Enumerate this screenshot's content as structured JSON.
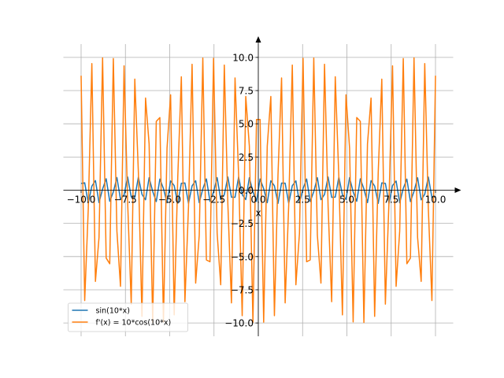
{
  "chart_data": {
    "type": "line",
    "xlabel": "x",
    "x": [
      -10,
      -9.798,
      -9.596,
      -9.3939,
      -9.1919,
      -8.9899,
      -8.7879,
      -8.5859,
      -8.3838,
      -8.1818,
      -7.9798,
      -7.7778,
      -7.5758,
      -7.3737,
      -7.1717,
      -6.9697,
      -6.7677,
      -6.5657,
      -6.3636,
      -6.1616,
      -5.9596,
      -5.7576,
      -5.5556,
      -5.3535,
      -5.1515,
      -4.9495,
      -4.7475,
      -4.5455,
      -4.3434,
      -4.1414,
      -3.9394,
      -3.7374,
      -3.5354,
      -3.3333,
      -3.1313,
      -2.9293,
      -2.7273,
      -2.5253,
      -2.3232,
      -2.1212,
      -1.9192,
      -1.7172,
      -1.5152,
      -1.3131,
      -1.1111,
      -0.9091,
      -0.7071,
      -0.5051,
      -0.303,
      -0.101,
      0.101,
      0.303,
      0.5051,
      0.7071,
      0.9091,
      1.1111,
      1.3131,
      1.5152,
      1.7172,
      1.9192,
      2.1212,
      2.3232,
      2.5253,
      2.7273,
      2.9293,
      3.1313,
      3.3333,
      3.5354,
      3.7374,
      3.9394,
      4.1414,
      4.3434,
      4.5455,
      4.7475,
      4.9495,
      5.1515,
      5.3535,
      5.5556,
      5.7576,
      5.9596,
      6.1616,
      6.3636,
      6.5657,
      6.7677,
      6.9697,
      7.1717,
      7.3737,
      7.5758,
      7.7778,
      7.9798,
      8.1818,
      8.3838,
      8.5859,
      8.7879,
      8.9899,
      9.1919,
      9.3939,
      9.596,
      9.798,
      10
    ],
    "series": [
      {
        "name": "sin(10*x)",
        "color": "#1f77b4",
        "values": [
          0.506,
          0.557,
          -0.99,
          0.304,
          0.726,
          -0.935,
          0.086,
          0.86,
          -0.833,
          -0.136,
          0.952,
          -0.69,
          -0.352,
          0.996,
          -0.514,
          -0.55,
          0.991,
          -0.312,
          -0.721,
          0.938,
          -0.094,
          -0.856,
          0.837,
          0.128,
          -0.949,
          0.696,
          0.344,
          -0.995,
          0.521,
          0.543,
          -0.992,
          0.32,
          0.715,
          -0.941,
          0.103,
          0.851,
          -0.842,
          -0.12,
          0.946,
          -0.703,
          -0.336,
          0.994,
          -0.528,
          -0.535,
          0.993,
          -0.328,
          -0.709,
          0.943,
          -0.111,
          -0.847,
          0.847,
          0.111,
          -0.943,
          0.709,
          0.328,
          -0.993,
          0.535,
          0.528,
          -0.994,
          0.336,
          0.703,
          -0.946,
          0.12,
          0.842,
          -0.851,
          -0.103,
          0.941,
          -0.715,
          -0.32,
          0.992,
          -0.543,
          -0.521,
          0.995,
          -0.344,
          -0.696,
          0.949,
          -0.128,
          -0.837,
          0.856,
          0.094,
          -0.938,
          0.721,
          0.312,
          -0.991,
          0.55,
          0.514,
          -0.996,
          0.352,
          0.69,
          -0.952,
          0.136,
          0.833,
          -0.86,
          -0.086,
          0.935,
          -0.726,
          -0.304,
          0.99,
          -0.557,
          -0.506
        ]
      },
      {
        "name": "f'(x) = 10*cos(10*x)",
        "color": "#ff7f0e",
        "values": [
          8.62,
          -8.31,
          -1.41,
          9.53,
          -6.87,
          -3.56,
          9.96,
          -5.11,
          -5.54,
          9.91,
          -3.08,
          -7.24,
          9.36,
          -0.9,
          -8.58,
          8.36,
          1.32,
          -9.5,
          6.94,
          3.48,
          -9.96,
          5.18,
          5.47,
          -9.92,
          3.16,
          7.18,
          -9.39,
          0.98,
          8.54,
          -8.4,
          -1.24,
          9.48,
          -7.0,
          -3.4,
          9.95,
          -5.25,
          -5.39,
          9.93,
          -3.24,
          -7.12,
          9.42,
          -1.07,
          -8.49,
          8.45,
          1.15,
          -9.45,
          7.06,
          3.32,
          -9.94,
          5.32,
          5.32,
          -9.94,
          3.32,
          7.06,
          -9.45,
          1.15,
          8.45,
          -8.49,
          -1.07,
          9.42,
          -7.12,
          -3.24,
          9.93,
          -5.39,
          -5.25,
          9.95,
          -3.4,
          -7.0,
          9.48,
          -1.24,
          -8.4,
          8.54,
          0.98,
          -9.39,
          7.18,
          3.16,
          -9.92,
          5.47,
          5.18,
          -9.96,
          3.48,
          6.94,
          -9.5,
          1.32,
          8.36,
          -8.58,
          -0.9,
          9.36,
          -7.24,
          -3.08,
          9.91,
          -5.54,
          -5.11,
          9.96,
          -3.56,
          -6.87,
          9.53,
          -1.41,
          -8.31,
          8.62
        ]
      }
    ],
    "xlim": [
      -11,
      11
    ],
    "ylim": [
      -11,
      11
    ],
    "xticks": [
      {
        "value": -10,
        "label": "−10.0"
      },
      {
        "value": -7.5,
        "label": "−7.5"
      },
      {
        "value": -5,
        "label": "−5.0"
      },
      {
        "value": -2.5,
        "label": "−2.5"
      },
      {
        "value": 0,
        "label": "0.0"
      },
      {
        "value": 2.5,
        "label": "2.5"
      },
      {
        "value": 5,
        "label": "5.0"
      },
      {
        "value": 7.5,
        "label": "7.5"
      },
      {
        "value": 10,
        "label": "10.0"
      }
    ],
    "yticks": [
      {
        "value": -10,
        "label": "−10.0"
      },
      {
        "value": -7.5,
        "label": "−7.5"
      },
      {
        "value": -5,
        "label": "−5.0"
      },
      {
        "value": -2.5,
        "label": "−2.5"
      },
      {
        "value": 0,
        "label": "0.0"
      },
      {
        "value": 2.5,
        "label": "2.5"
      },
      {
        "value": 5,
        "label": "5.0"
      },
      {
        "value": 7.5,
        "label": "7.5"
      },
      {
        "value": 10,
        "label": "10.0"
      }
    ],
    "grid": true,
    "legend": "lower left"
  }
}
